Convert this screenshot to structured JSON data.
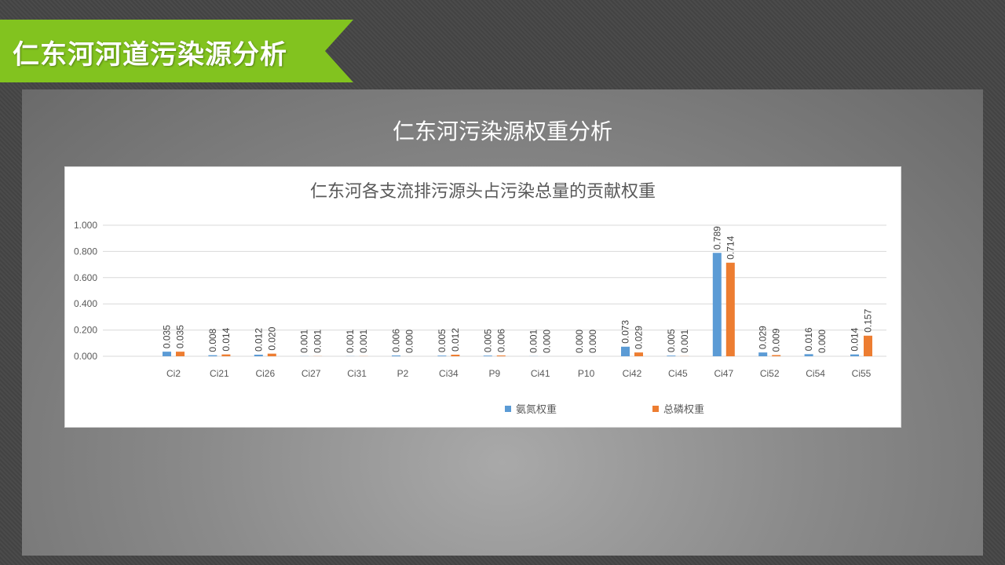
{
  "slide": {
    "header_title": "仁东河河道污染源分析",
    "subtitle": "仁东河污染源权重分析"
  },
  "colors": {
    "banner": "#82c31f",
    "series_ammonia": "#5b9bd5",
    "series_phosphorus": "#ed7d31"
  },
  "chart_data": {
    "type": "bar",
    "title": "仁东河各支流排污源头占污染总量的贡献权重",
    "categories": [
      "Ci2",
      "Ci21",
      "Ci26",
      "Ci27",
      "Ci31",
      "P2",
      "Ci34",
      "P9",
      "Ci41",
      "P10",
      "Ci42",
      "Ci45",
      "Ci47",
      "Ci52",
      "Ci54",
      "Ci55"
    ],
    "series": [
      {
        "name": "氨氮权重",
        "color": "#5b9bd5",
        "values": [
          0.035,
          0.008,
          0.012,
          0.001,
          0.001,
          0.006,
          0.005,
          0.005,
          0.001,
          0.0,
          0.073,
          0.005,
          0.789,
          0.029,
          0.016,
          0.014
        ]
      },
      {
        "name": "总磷权重",
        "color": "#ed7d31",
        "values": [
          0.035,
          0.014,
          0.02,
          0.001,
          0.001,
          0.0,
          0.012,
          0.006,
          0.0,
          0.0,
          0.029,
          0.001,
          0.714,
          0.009,
          0.0,
          0.157
        ]
      }
    ],
    "ylim": [
      0,
      1
    ],
    "yticks": [
      "0.000",
      "0.200",
      "0.400",
      "0.600",
      "0.800",
      "1.000"
    ],
    "grid": true,
    "legend_position": "bottom",
    "xlabel": "",
    "ylabel": ""
  }
}
